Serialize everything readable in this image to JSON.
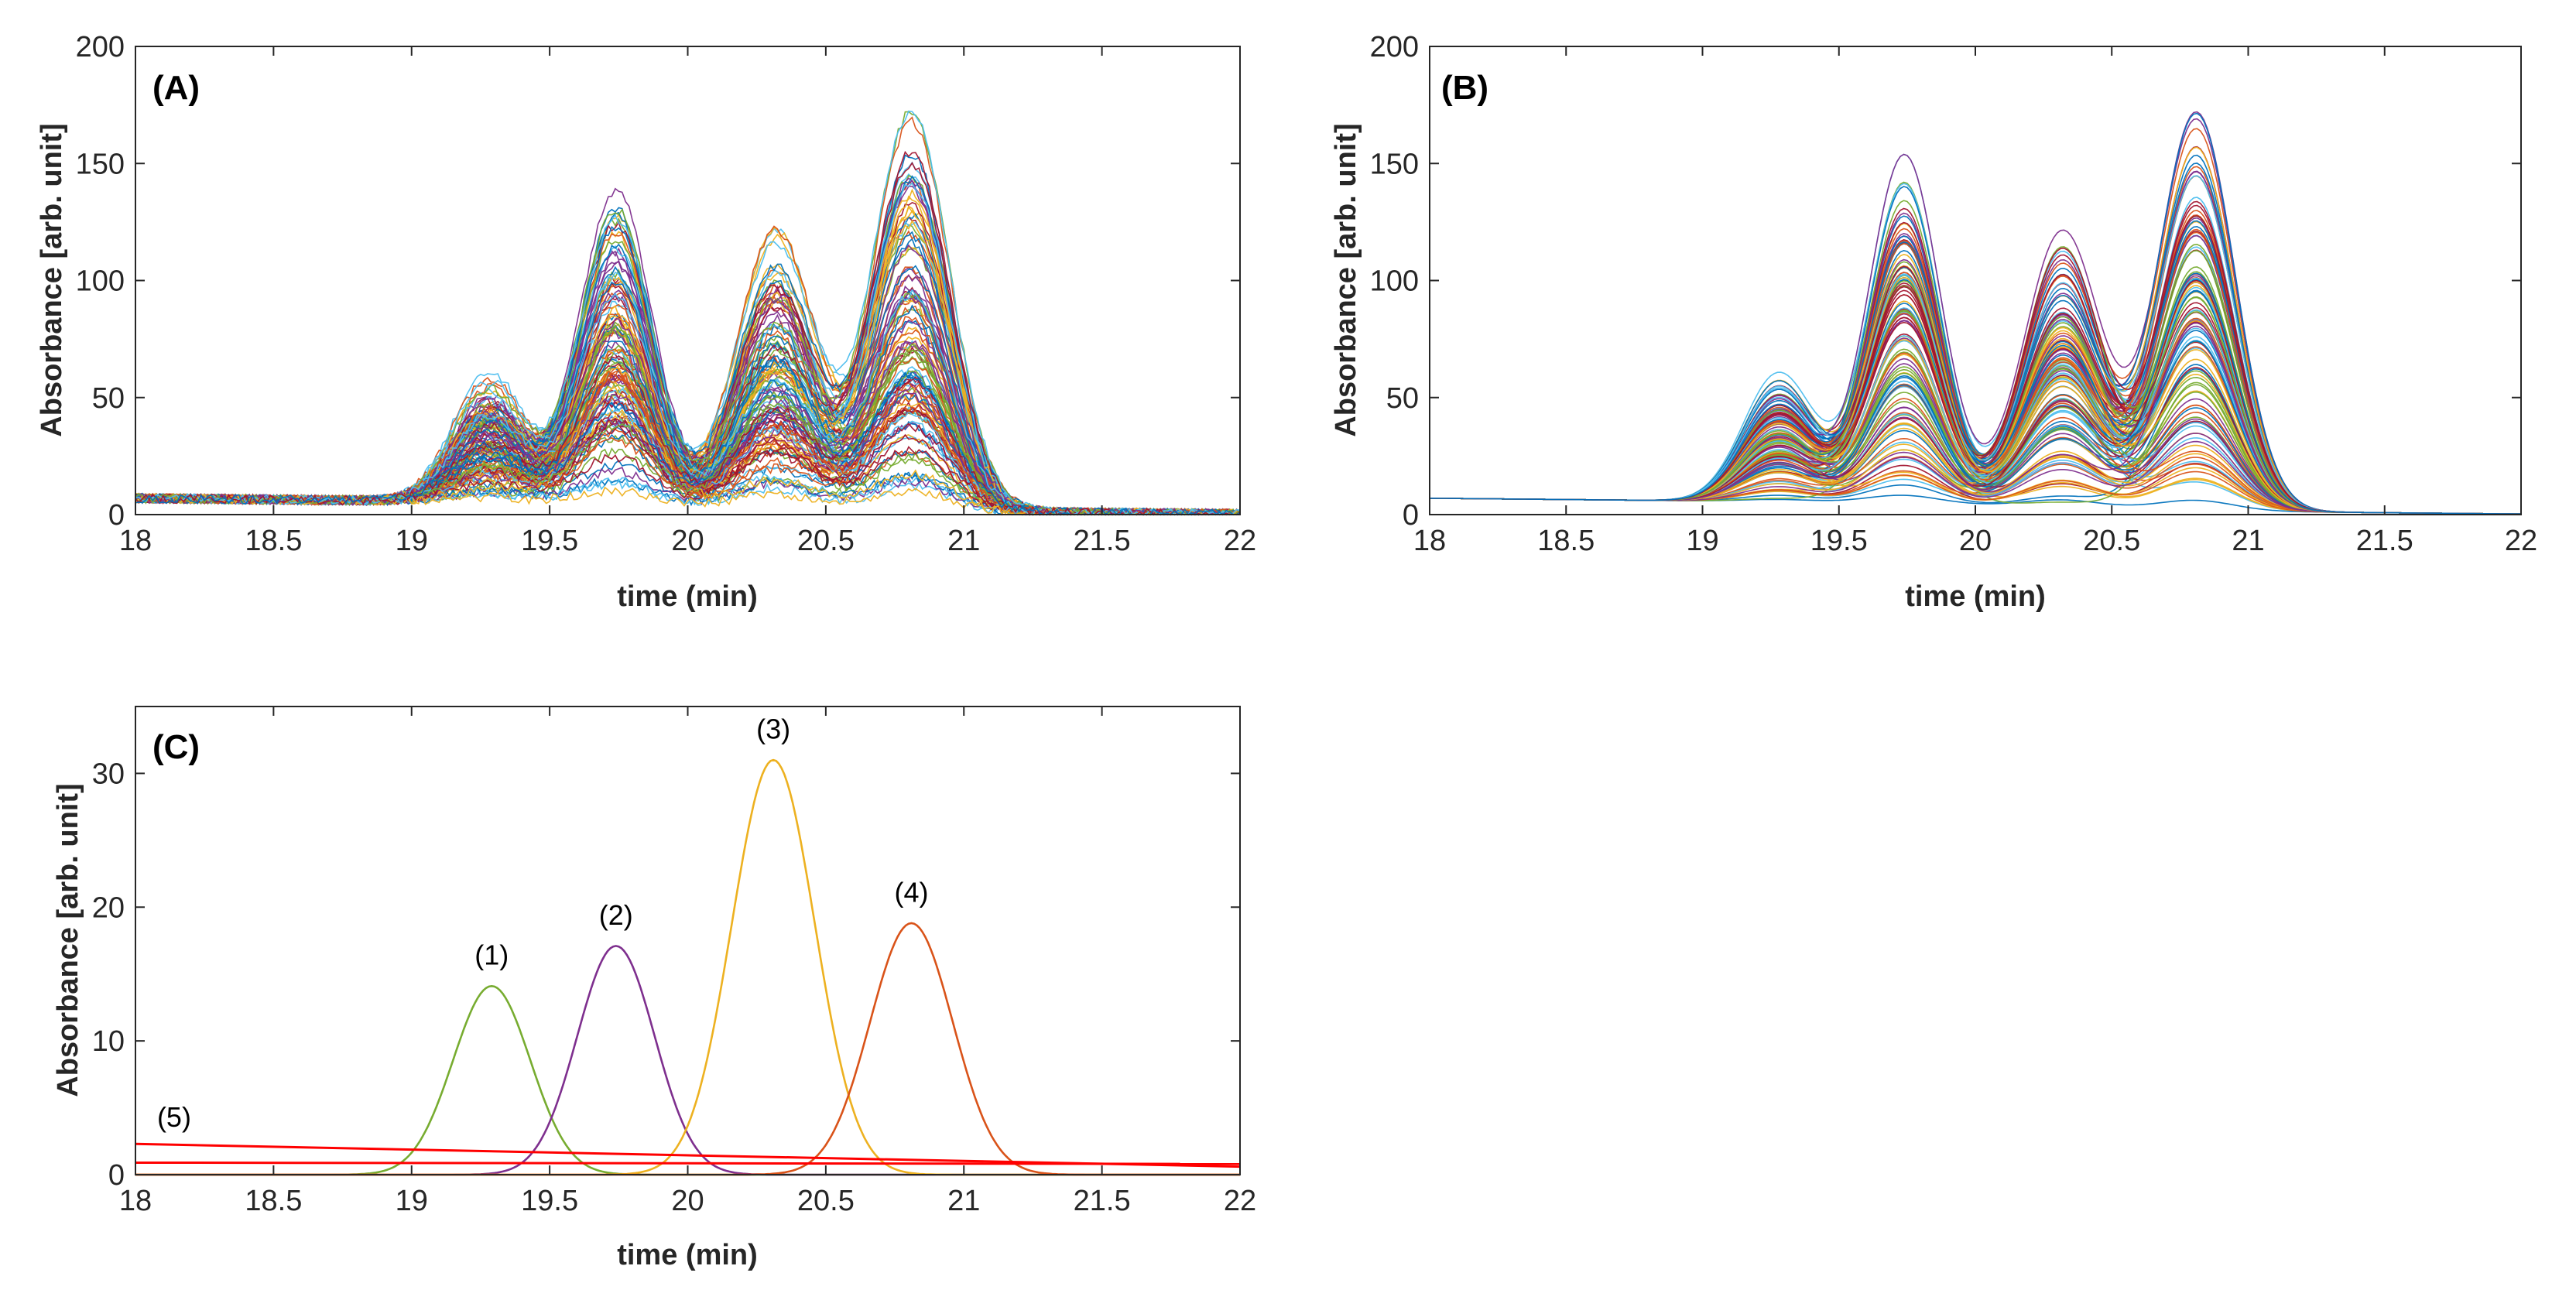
{
  "chart_data": [
    {
      "type": "line",
      "panel": "(A)",
      "xlabel": "time (min)",
      "ylabel": "Absorbance [arb. unit]",
      "xlim": [
        18,
        22
      ],
      "ylim": [
        0,
        200
      ],
      "xticks": [
        "18",
        "18.5",
        "19",
        "19.5",
        "20",
        "20.5",
        "21",
        "21.5",
        "22"
      ],
      "yticks": [
        "0",
        "50",
        "100",
        "150",
        "200"
      ],
      "grid": false,
      "noisy": true,
      "series_count": 120,
      "peaks": [
        {
          "center": 19.28,
          "width": 0.13,
          "max_height": 55
        },
        {
          "center": 19.74,
          "width": 0.13,
          "max_height": 149
        },
        {
          "center": 20.32,
          "width": 0.14,
          "max_height": 118
        },
        {
          "center": 20.81,
          "width": 0.14,
          "max_height": 170
        }
      ],
      "baseline": {
        "start": 7,
        "end": 2.5
      }
    },
    {
      "type": "line",
      "panel": "(B)",
      "xlabel": "time (min)",
      "ylabel": "Absorbance [arb. unit]",
      "xlim": [
        18,
        22
      ],
      "ylim": [
        0,
        200
      ],
      "xticks": [
        "18",
        "18.5",
        "19",
        "19.5",
        "20",
        "20.5",
        "21",
        "21.5",
        "22"
      ],
      "yticks": [
        "0",
        "50",
        "100",
        "150",
        "200"
      ],
      "grid": false,
      "noisy": false,
      "series_count": 120,
      "peaks": [
        {
          "center": 19.28,
          "width": 0.13,
          "max_height": 55
        },
        {
          "center": 19.74,
          "width": 0.13,
          "max_height": 149
        },
        {
          "center": 20.32,
          "width": 0.14,
          "max_height": 118
        },
        {
          "center": 20.81,
          "width": 0.14,
          "max_height": 170
        }
      ],
      "baseline": {
        "start": 7,
        "end": 2.5
      }
    },
    {
      "type": "line",
      "panel": "(C)",
      "xlabel": "time (min)",
      "ylabel": "Absorbance [arb. unit]",
      "xlim": [
        18,
        22
      ],
      "ylim": [
        0,
        35
      ],
      "xticks": [
        "18",
        "18.5",
        "19",
        "19.5",
        "20",
        "20.5",
        "21",
        "21.5",
        "22"
      ],
      "yticks": [
        "0",
        "10",
        "20",
        "30"
      ],
      "grid": false,
      "series": [
        {
          "label": "(1)",
          "kind": "gaussian",
          "center": 19.29,
          "width": 0.14,
          "height": 14.1,
          "color": "#77AC30",
          "label_y": 15.7
        },
        {
          "label": "(2)",
          "kind": "gaussian",
          "center": 19.74,
          "width": 0.14,
          "height": 17.1,
          "color": "#7E2F8E",
          "label_y": 18.7
        },
        {
          "label": "(3)",
          "kind": "gaussian",
          "center": 20.31,
          "width": 0.15,
          "height": 31.0,
          "color": "#EDB120",
          "label_y": 32.6
        },
        {
          "label": "(4)",
          "kind": "gaussian",
          "center": 20.81,
          "width": 0.15,
          "height": 18.8,
          "color": "#D95319",
          "label_y": 20.4
        },
        {
          "label": "(5)",
          "kind": "baseline",
          "lines": [
            [
              2.3,
              0.6
            ],
            [
              0.9,
              0.8
            ]
          ],
          "color": "#FF0000",
          "label_x": 18.14,
          "label_y": 3.6
        }
      ]
    }
  ]
}
